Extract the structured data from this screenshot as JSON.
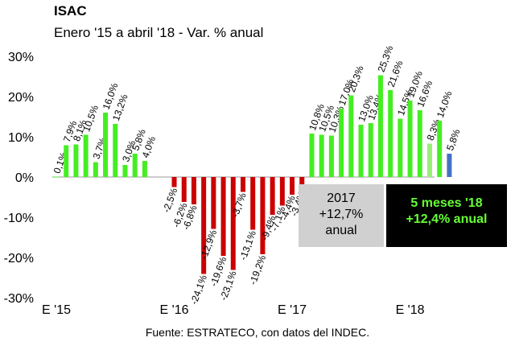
{
  "title": "ISAC",
  "subtitle": "Enero '15 a abril '18 - Var. % anual",
  "source": "Fuente: ESTRATECO, con datos del INDEC.",
  "box_2017": {
    "line1": "2017",
    "line2": "+12,7%",
    "line3": "anual"
  },
  "box_2018": {
    "line1": "5 meses '18",
    "line2": "+12,4% anual"
  },
  "colors": {
    "positive": "#44ee22",
    "positive_light": "#99ee77",
    "negative": "#cc0000",
    "highlight": "#4472c4"
  },
  "chart_data": {
    "type": "bar",
    "title": "ISAC",
    "subtitle": "Enero '15 a abril '18 - Var. % anual",
    "ylim": [
      -30,
      30
    ],
    "yticks": [
      "30%",
      "20%",
      "10%",
      "0%",
      "-10%",
      "-20%",
      "-30%"
    ],
    "xticks": [
      {
        "index": 0,
        "label": "E '15"
      },
      {
        "index": 12,
        "label": "E '16"
      },
      {
        "index": 24,
        "label": "E '17"
      },
      {
        "index": 36,
        "label": "E '18"
      }
    ],
    "values": [
      0.1,
      7.9,
      8.1,
      10.5,
      3.7,
      16.0,
      13.2,
      3.0,
      5.8,
      4.0,
      null,
      null,
      -2.5,
      -6.2,
      -6.8,
      -24.1,
      -12.9,
      -19.6,
      -23.1,
      -3.7,
      -13.1,
      -19.2,
      -9.4,
      -7.1,
      -4.4,
      -3.4,
      10.8,
      10.5,
      10.3,
      17.0,
      20.3,
      13.0,
      13.4,
      25.3,
      21.6,
      14.5,
      19.0,
      16.6,
      8.3,
      14.0,
      5.8
    ],
    "labels": [
      "0,1%",
      "7,9%",
      "8,1%",
      "10,5%",
      "3,7%",
      "16,0%",
      "13,2%",
      "3,0%",
      "5,8%",
      "4,0%",
      "",
      "",
      "-2,5%",
      "-6,2%",
      "-6,8%",
      "-24,1%",
      "-12,9%",
      "-19,6%",
      "-23,1%",
      "-3,7%",
      "-13,1%",
      "-19,2%",
      "-9,4%",
      "-7,1%",
      "-4,4%",
      "-3,4%",
      "10,8%",
      "10,5%",
      "10,3%",
      "17,0%",
      "20,3%",
      "13,0%",
      "13,4%",
      "25,3%",
      "21,6%",
      "14,5%",
      "19,0%",
      "16,6%",
      "8,3%",
      "14,0%",
      "5,8%"
    ]
  }
}
